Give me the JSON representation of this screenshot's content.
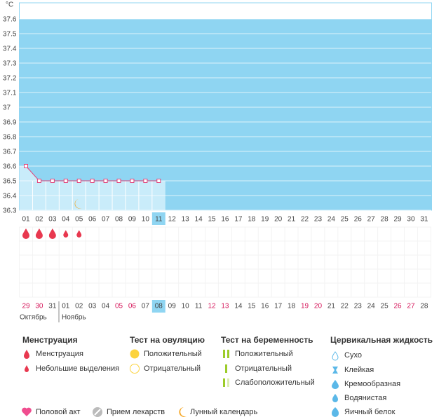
{
  "y_axis_label": "°C",
  "chart_data": {
    "type": "line",
    "categories": [
      "01",
      "02",
      "03",
      "04",
      "05",
      "06",
      "07",
      "08",
      "09",
      "10",
      "11",
      "12",
      "13",
      "14",
      "15",
      "16",
      "17",
      "18",
      "19",
      "20",
      "21",
      "22",
      "23",
      "24",
      "25",
      "26",
      "27",
      "28",
      "29",
      "30",
      "31"
    ],
    "values": [
      36.6,
      36.5,
      36.5,
      36.5,
      36.5,
      36.5,
      36.5,
      36.5,
      36.5,
      36.5,
      36.5,
      null,
      null,
      null,
      null,
      null,
      null,
      null,
      null,
      null,
      null,
      null,
      null,
      null,
      null,
      null,
      null,
      null,
      null,
      null,
      null
    ],
    "color": "#e0457b",
    "area_color": "#c9ecfa",
    "background": "#8fd5f2",
    "highlight_index": 10,
    "ylim": [
      36.3,
      37.6
    ],
    "yticks": [
      36.3,
      36.4,
      36.5,
      36.6,
      36.7,
      36.8,
      36.9,
      37,
      37.1,
      37.2,
      37.3,
      37.4,
      37.5,
      37.6
    ],
    "grid": true
  },
  "menstruation": [
    "heavy",
    "heavy",
    "heavy",
    "light",
    "light",
    null,
    null,
    null,
    null,
    null,
    null,
    null,
    null,
    null,
    null,
    null,
    null,
    null,
    null,
    null,
    null,
    null,
    null,
    null,
    null,
    null,
    null,
    null,
    null,
    null,
    null
  ],
  "moon_index": 4,
  "cycle": {
    "days": [
      {
        "label": "29",
        "weekend": true
      },
      {
        "label": "30",
        "weekend": true
      },
      {
        "label": "31",
        "weekend": false
      },
      {
        "label": "01",
        "weekend": false
      },
      {
        "label": "02",
        "weekend": false
      },
      {
        "label": "03",
        "weekend": false
      },
      {
        "label": "04",
        "weekend": false
      },
      {
        "label": "05",
        "weekend": true
      },
      {
        "label": "06",
        "weekend": true
      },
      {
        "label": "07",
        "weekend": false
      },
      {
        "label": "08",
        "weekend": false
      },
      {
        "label": "09",
        "weekend": false
      },
      {
        "label": "10",
        "weekend": false
      },
      {
        "label": "11",
        "weekend": false
      },
      {
        "label": "12",
        "weekend": true
      },
      {
        "label": "13",
        "weekend": true
      },
      {
        "label": "14",
        "weekend": false
      },
      {
        "label": "15",
        "weekend": false
      },
      {
        "label": "16",
        "weekend": false
      },
      {
        "label": "17",
        "weekend": false
      },
      {
        "label": "18",
        "weekend": false
      },
      {
        "label": "19",
        "weekend": true
      },
      {
        "label": "20",
        "weekend": true
      },
      {
        "label": "21",
        "weekend": false
      },
      {
        "label": "22",
        "weekend": false
      },
      {
        "label": "23",
        "weekend": false
      },
      {
        "label": "24",
        "weekend": false
      },
      {
        "label": "25",
        "weekend": false
      },
      {
        "label": "26",
        "weekend": true
      },
      {
        "label": "27",
        "weekend": true
      },
      {
        "label": "28",
        "weekend": false
      }
    ],
    "highlight_index": 10,
    "months": [
      "Октябрь",
      "Ноябрь"
    ]
  },
  "legend": {
    "menstruation": {
      "title": "Менструация",
      "items": [
        "Менструация",
        "Небольшие выделения"
      ]
    },
    "ovulation": {
      "title": "Тест на овуляцию",
      "items": [
        "Положительный",
        "Отрицательный"
      ]
    },
    "pregnancy": {
      "title": "Тест на беременность",
      "items": [
        "Положительный",
        "Отрицательный",
        "Слабоположительный"
      ]
    },
    "cervical": {
      "title": "Цервикальная жидкость",
      "items": [
        "Сухо",
        "Клейкая",
        "Кремообразная",
        "Водянистая",
        "Яичный белок"
      ]
    },
    "other": [
      "Половой акт",
      "Прием лекарств",
      "Лунный календарь"
    ]
  }
}
